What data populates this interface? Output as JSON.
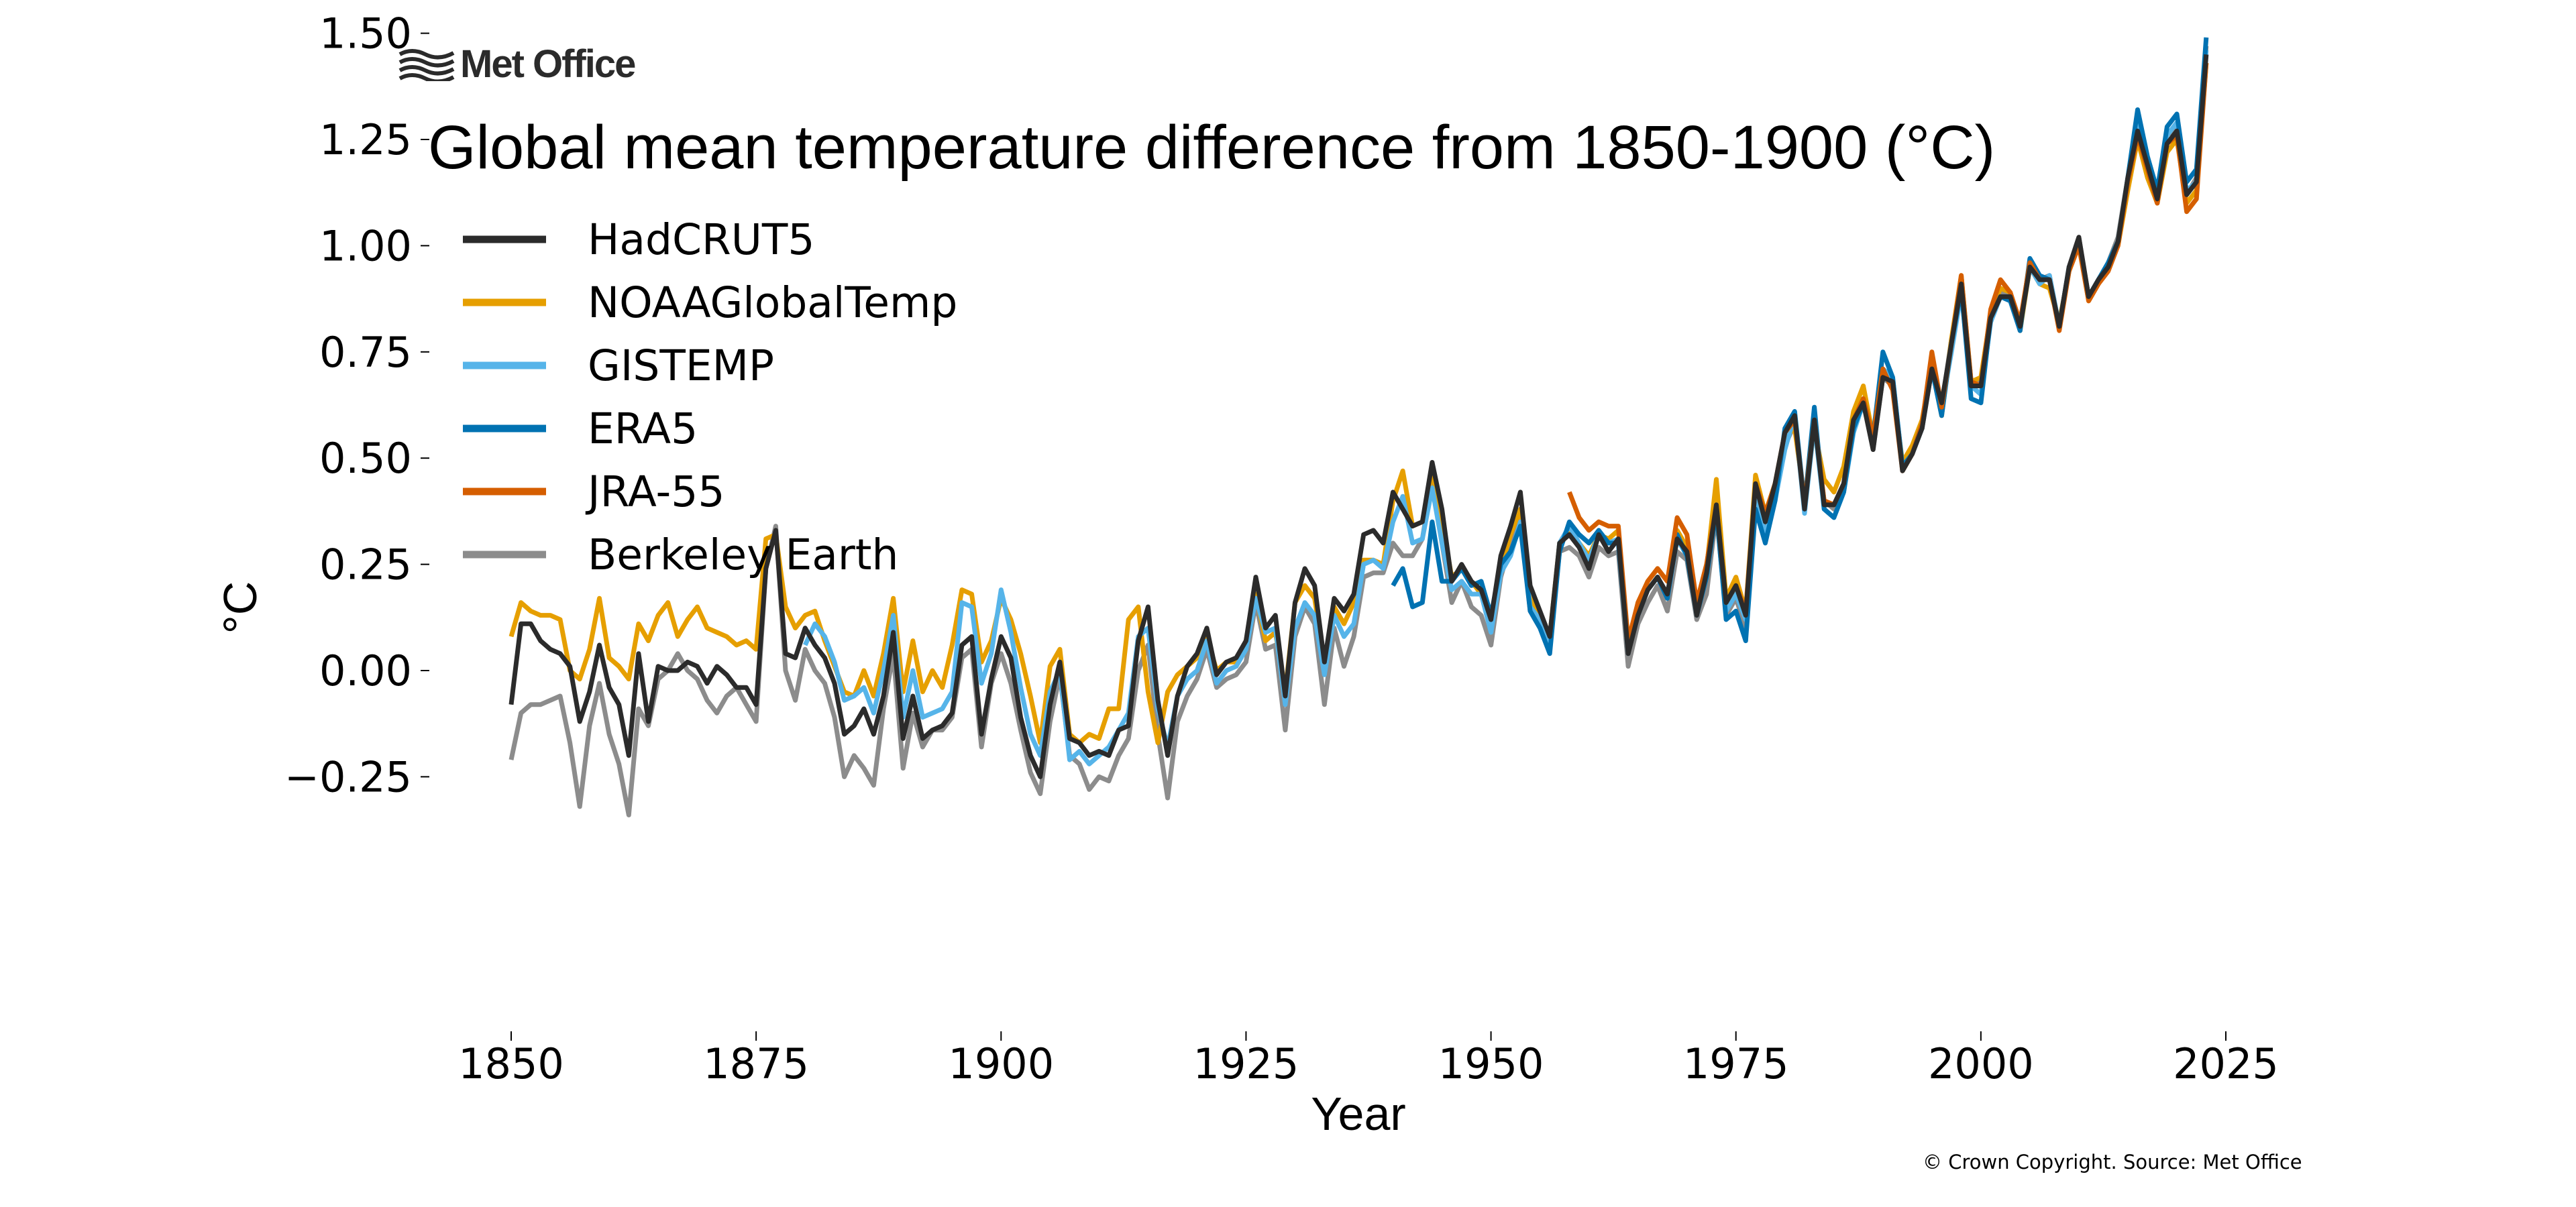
{
  "logo": {
    "text": "Met Office",
    "icon": "waves-icon"
  },
  "title": "Global mean temperature difference from 1850-1900 (°C)",
  "copyright": "© Crown Copyright. Source: Met Office",
  "chart_data": {
    "type": "line",
    "title": "Global mean temperature difference from 1850-1900 (°C)",
    "xlabel": "Year",
    "ylabel": "°C",
    "xlim": [
      1845,
      2027
    ],
    "ylim": [
      -0.38,
      1.52
    ],
    "xticks": [
      1850,
      1875,
      1900,
      1925,
      1950,
      1975,
      2000,
      2025
    ],
    "xtick_labels": [
      "1850",
      "1875",
      "1900",
      "1925",
      "1950",
      "1975",
      "2000",
      "2025"
    ],
    "yticks": [
      -0.25,
      0,
      0.25,
      0.5,
      0.75,
      1.0,
      1.25,
      1.5
    ],
    "ytick_labels": [
      "−0.25",
      "0.00",
      "0.25",
      "0.50",
      "0.75",
      "1.00",
      "1.25",
      "1.50"
    ],
    "grid": false,
    "legend_position": "top-left",
    "series": [
      {
        "name": "HadCRUT5",
        "color": "#2b2b2b",
        "start": 1850,
        "values": [
          -0.08,
          0.11,
          0.11,
          0.07,
          0.05,
          0.04,
          0.01,
          -0.12,
          -0.05,
          0.06,
          -0.04,
          -0.08,
          -0.2,
          0.04,
          -0.12,
          0.01,
          0.0,
          0.0,
          0.02,
          0.01,
          -0.03,
          0.01,
          -0.01,
          -0.04,
          -0.04,
          -0.08,
          0.24,
          0.33,
          0.04,
          0.03,
          0.1,
          0.06,
          0.03,
          -0.03,
          -0.15,
          -0.13,
          -0.09,
          -0.15,
          -0.06,
          0.09,
          -0.16,
          -0.06,
          -0.16,
          -0.14,
          -0.13,
          -0.1,
          0.06,
          0.08,
          -0.15,
          -0.02,
          0.08,
          0.03,
          -0.11,
          -0.2,
          -0.25,
          -0.08,
          0.02,
          -0.16,
          -0.17,
          -0.2,
          -0.19,
          -0.2,
          -0.14,
          -0.13,
          0.07,
          0.15,
          -0.07,
          -0.2,
          -0.06,
          0.01,
          0.04,
          0.1,
          -0.01,
          0.02,
          0.03,
          0.07,
          0.22,
          0.1,
          0.13,
          -0.06,
          0.16,
          0.24,
          0.2,
          0.02,
          0.17,
          0.14,
          0.18,
          0.32,
          0.33,
          0.3,
          0.42,
          0.38,
          0.34,
          0.35,
          0.49,
          0.38,
          0.21,
          0.25,
          0.21,
          0.19,
          0.12,
          0.27,
          0.34,
          0.42,
          0.2,
          0.14,
          0.08,
          0.3,
          0.32,
          0.29,
          0.24,
          0.32,
          0.28,
          0.31,
          0.04,
          0.13,
          0.19,
          0.22,
          0.18,
          0.31,
          0.28,
          0.13,
          0.23,
          0.39,
          0.16,
          0.2,
          0.13,
          0.44,
          0.35,
          0.44,
          0.56,
          0.6,
          0.38,
          0.59,
          0.39,
          0.39,
          0.44,
          0.59,
          0.63,
          0.52,
          0.69,
          0.68,
          0.47,
          0.51,
          0.57,
          0.71,
          0.63,
          0.77,
          0.91,
          0.67,
          0.67,
          0.83,
          0.88,
          0.88,
          0.81,
          0.95,
          0.92,
          0.92,
          0.81,
          0.95,
          1.02,
          0.88,
          0.92,
          0.95,
          1.01,
          1.16,
          1.27,
          1.19,
          1.11,
          1.24,
          1.27,
          1.12,
          1.15,
          1.45
        ]
      },
      {
        "name": "NOAAGlobalTemp",
        "color": "#e69f00",
        "start": 1850,
        "values": [
          0.08,
          0.16,
          0.14,
          0.13,
          0.13,
          0.12,
          0.0,
          -0.02,
          0.05,
          0.17,
          0.03,
          0.01,
          -0.02,
          0.11,
          0.07,
          0.13,
          0.16,
          0.08,
          0.12,
          0.15,
          0.1,
          0.09,
          0.08,
          0.06,
          0.07,
          0.05,
          0.31,
          0.32,
          0.15,
          0.1,
          0.13,
          0.14,
          0.07,
          0.01,
          -0.05,
          -0.06,
          0.0,
          -0.06,
          0.04,
          0.17,
          -0.05,
          0.07,
          -0.05,
          0.0,
          -0.04,
          0.06,
          0.19,
          0.18,
          0.02,
          0.07,
          0.17,
          0.12,
          0.04,
          -0.06,
          -0.17,
          0.01,
          0.05,
          -0.15,
          -0.17,
          -0.15,
          -0.16,
          -0.09,
          -0.09,
          0.12,
          0.15,
          -0.05,
          -0.17,
          -0.05,
          -0.01,
          0.01,
          0.03,
          0.08,
          0.0,
          0.02,
          0.02,
          0.07,
          0.18,
          0.07,
          0.09,
          -0.05,
          0.16,
          0.2,
          0.17,
          0.02,
          0.15,
          0.11,
          0.16,
          0.26,
          0.26,
          0.25,
          0.4,
          0.47,
          0.34,
          0.35,
          0.47,
          0.35,
          0.22,
          0.24,
          0.21,
          0.18,
          0.1,
          0.24,
          0.32,
          0.38,
          0.18,
          0.12,
          0.08,
          0.3,
          0.33,
          0.3,
          0.27,
          0.32,
          0.31,
          0.33,
          0.06,
          0.16,
          0.21,
          0.24,
          0.21,
          0.33,
          0.29,
          0.15,
          0.24,
          0.45,
          0.17,
          0.22,
          0.14,
          0.46,
          0.37,
          0.44,
          0.55,
          0.57,
          0.4,
          0.57,
          0.45,
          0.42,
          0.48,
          0.61,
          0.67,
          0.55,
          0.7,
          0.67,
          0.49,
          0.53,
          0.59,
          0.72,
          0.6,
          0.78,
          0.93,
          0.68,
          0.69,
          0.84,
          0.9,
          0.89,
          0.8,
          0.95,
          0.91,
          0.9,
          0.82,
          0.94,
          1.01,
          0.87,
          0.91,
          0.95,
          1.0,
          1.13,
          1.25,
          1.16,
          1.1,
          1.22,
          1.25,
          1.1,
          1.13,
          1.43
        ]
      },
      {
        "name": "GISTEMP",
        "color": "#56b4e9",
        "start": 1880,
        "values": [
          0.06,
          0.11,
          0.08,
          0.02,
          -0.07,
          -0.06,
          -0.04,
          -0.1,
          0.0,
          0.13,
          -0.11,
          0.0,
          -0.11,
          -0.1,
          -0.09,
          -0.05,
          0.16,
          0.15,
          -0.03,
          0.04,
          0.19,
          0.09,
          -0.04,
          -0.15,
          -0.2,
          -0.05,
          0.0,
          -0.21,
          -0.19,
          -0.22,
          -0.2,
          -0.18,
          -0.14,
          -0.1,
          0.08,
          0.1,
          -0.09,
          -0.18,
          -0.06,
          -0.02,
          0.0,
          0.07,
          -0.03,
          0.0,
          0.01,
          0.05,
          0.17,
          0.09,
          0.1,
          -0.08,
          0.1,
          0.16,
          0.13,
          -0.01,
          0.13,
          0.08,
          0.11,
          0.25,
          0.26,
          0.24,
          0.35,
          0.41,
          0.3,
          0.31,
          0.43,
          0.3,
          0.19,
          0.21,
          0.18,
          0.18,
          0.09,
          0.23,
          0.27,
          0.35,
          0.15,
          0.12,
          0.07,
          0.3,
          0.34,
          0.3,
          0.26,
          0.32,
          0.3,
          0.31,
          0.05,
          0.13,
          0.19,
          0.22,
          0.17,
          0.31,
          0.27,
          0.14,
          0.22,
          0.39,
          0.14,
          0.18,
          0.12,
          0.41,
          0.32,
          0.4,
          0.52,
          0.6,
          0.37,
          0.58,
          0.38,
          0.36,
          0.42,
          0.56,
          0.63,
          0.53,
          0.71,
          0.69,
          0.48,
          0.51,
          0.57,
          0.71,
          0.62,
          0.75,
          0.89,
          0.67,
          0.65,
          0.82,
          0.88,
          0.88,
          0.81,
          0.95,
          0.91,
          0.93,
          0.81,
          0.94,
          1.01,
          0.88,
          0.92,
          0.96,
          1.01,
          1.15,
          1.29,
          1.19,
          1.12,
          1.26,
          1.29,
          1.13,
          1.15,
          1.46
        ]
      },
      {
        "name": "ERA5",
        "color": "#0072b2",
        "start": 1940,
        "values": [
          0.2,
          0.24,
          0.15,
          0.16,
          0.35,
          0.21,
          0.21,
          0.24,
          0.2,
          0.21,
          0.13,
          0.25,
          0.28,
          0.34,
          0.14,
          0.1,
          0.04,
          0.28,
          0.35,
          0.32,
          0.3,
          0.33,
          0.3,
          0.3,
          0.04,
          0.15,
          0.19,
          0.22,
          0.17,
          0.32,
          0.27,
          0.13,
          0.22,
          0.38,
          0.12,
          0.14,
          0.07,
          0.38,
          0.3,
          0.4,
          0.57,
          0.61,
          0.39,
          0.62,
          0.38,
          0.36,
          0.42,
          0.57,
          0.63,
          0.55,
          0.75,
          0.69,
          0.48,
          0.51,
          0.58,
          0.71,
          0.6,
          0.77,
          0.9,
          0.64,
          0.63,
          0.83,
          0.88,
          0.87,
          0.8,
          0.97,
          0.93,
          0.92,
          0.81,
          0.95,
          1.01,
          0.88,
          0.92,
          0.96,
          1.01,
          1.16,
          1.32,
          1.21,
          1.13,
          1.28,
          1.31,
          1.15,
          1.18,
          1.49
        ]
      },
      {
        "name": "JRA-55",
        "color": "#d55e00",
        "start": 1958,
        "values": [
          0.42,
          0.36,
          0.33,
          0.35,
          0.34,
          0.34,
          0.07,
          0.16,
          0.21,
          0.24,
          0.21,
          0.36,
          0.32,
          0.16,
          0.25,
          0.39,
          0.16,
          0.2,
          0.14,
          0.44,
          0.37,
          0.44,
          0.56,
          0.59,
          0.39,
          0.59,
          0.4,
          0.39,
          0.44,
          0.59,
          0.64,
          0.55,
          0.71,
          0.66,
          0.47,
          0.51,
          0.58,
          0.75,
          0.62,
          0.77,
          0.93,
          0.68,
          0.67,
          0.85,
          0.92,
          0.89,
          0.82,
          0.96,
          0.92,
          0.92,
          0.8,
          0.94,
          1.0,
          0.87,
          0.91,
          0.94,
          1.0,
          1.15,
          1.26,
          1.18,
          1.1,
          1.24,
          1.26,
          1.08,
          1.11,
          1.43
        ]
      },
      {
        "name": "Berkeley Earth",
        "color": "#8c8c8c",
        "start": 1850,
        "values": [
          -0.21,
          -0.1,
          -0.08,
          -0.08,
          -0.07,
          -0.06,
          -0.17,
          -0.32,
          -0.13,
          -0.03,
          -0.15,
          -0.22,
          -0.34,
          -0.09,
          -0.13,
          -0.02,
          0.0,
          0.04,
          0.0,
          -0.02,
          -0.07,
          -0.1,
          -0.06,
          -0.04,
          -0.08,
          -0.12,
          0.24,
          0.34,
          0.0,
          -0.07,
          0.05,
          0.0,
          -0.03,
          -0.11,
          -0.25,
          -0.2,
          -0.23,
          -0.27,
          -0.09,
          0.04,
          -0.23,
          -0.1,
          -0.18,
          -0.14,
          -0.14,
          -0.11,
          0.03,
          0.05,
          -0.18,
          -0.03,
          0.04,
          -0.03,
          -0.14,
          -0.24,
          -0.29,
          -0.12,
          -0.01,
          -0.2,
          -0.22,
          -0.28,
          -0.25,
          -0.26,
          -0.2,
          -0.16,
          0.0,
          0.06,
          -0.15,
          -0.3,
          -0.12,
          -0.06,
          -0.02,
          0.05,
          -0.04,
          -0.02,
          -0.01,
          0.02,
          0.16,
          0.05,
          0.06,
          -0.14,
          0.08,
          0.15,
          0.11,
          -0.08,
          0.1,
          0.01,
          0.08,
          0.22,
          0.23,
          0.23,
          0.3,
          0.27,
          0.27,
          0.31,
          0.45,
          0.3,
          0.16,
          0.21,
          0.15,
          0.13,
          0.06,
          0.22,
          0.3,
          0.37,
          0.14,
          0.11,
          0.06,
          0.28,
          0.29,
          0.27,
          0.22,
          0.29,
          0.27,
          0.28,
          0.01,
          0.11,
          0.16,
          0.2,
          0.14,
          0.28,
          0.26,
          0.12,
          0.18,
          0.37,
          0.13,
          0.17,
          0.1,
          0.42,
          0.34,
          0.43,
          0.53,
          0.58,
          0.4,
          0.58,
          0.4,
          0.38,
          0.43,
          0.58,
          0.64,
          0.52,
          0.69,
          0.67,
          0.48,
          0.52,
          0.57,
          0.71,
          0.62,
          0.78,
          0.91,
          0.68,
          0.68,
          0.84,
          0.89,
          0.88,
          0.81,
          0.95,
          0.92,
          0.93,
          0.81,
          0.95,
          1.02,
          0.88,
          0.92,
          0.96,
          1.02,
          1.16,
          1.28,
          1.2,
          1.12,
          1.26,
          1.28,
          1.12,
          1.16,
          1.47
        ]
      }
    ],
    "draw_order": [
      "Berkeley Earth",
      "NOAAGlobalTemp",
      "GISTEMP",
      "ERA5",
      "JRA-55",
      "HadCRUT5"
    ]
  }
}
